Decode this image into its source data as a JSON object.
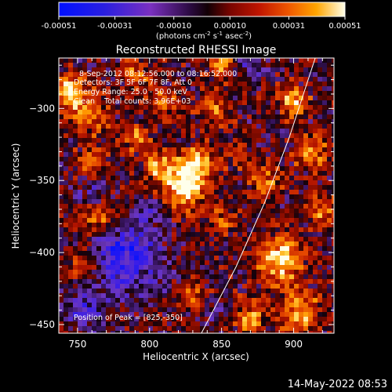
{
  "colorbar": {
    "tick_labels": [
      "-0.00051",
      "-0.00031",
      "-0.00010",
      "0.00010",
      "0.00031",
      "0.00051"
    ],
    "tick_values": [
      -0.00051,
      -0.00031,
      -0.0001,
      0.0001,
      0.00031,
      0.00051
    ],
    "range": [
      -0.00051,
      0.00051
    ],
    "units_prefix": "(photons cm",
    "units_exp1": "-2",
    "units_mid": " s",
    "units_exp2": "-1",
    "units_mid2": " asec",
    "units_exp3": "-2",
    "units_suffix": ")"
  },
  "title": "Reconstructed RHESSI Image",
  "annotations": {
    "time_range": "8-Sep-2012 08:12:56.000 to 08:16:52.000",
    "detectors": "Detectors: 3F 5F 6F 7F 8F, Att 0",
    "energy": "Energy Range: 25.0 - 50.0 keV",
    "counts": "Clean    Total counts: 3.96E+03",
    "peak": "Position of Peak = [825,-350]"
  },
  "timestamp": "14-May-2022 08:53",
  "chart_data": {
    "type": "heatmap",
    "xlabel": "Heliocentric X (arcsec)",
    "ylabel": "Heliocentric Y (arcsec)",
    "xlim": [
      737,
      928
    ],
    "ylim": [
      -456,
      -265
    ],
    "x_ticks": [
      750,
      800,
      850,
      900
    ],
    "y_ticks": [
      -300,
      -350,
      -400,
      -450
    ],
    "x_tick_labels": [
      "750",
      "800",
      "850",
      "900"
    ],
    "y_tick_labels": [
      "−300",
      "−350",
      "−400",
      "−450"
    ],
    "peak": [
      825,
      -350
    ],
    "colormap": [
      "#0000ff",
      "#6a2fb8",
      "#3a0f5a",
      "#0b0410",
      "#5a0a00",
      "#b01000",
      "#e04000",
      "#ff9000",
      "#ffe060",
      "#ffffff"
    ],
    "limb_curve": [
      [
        836,
        -456
      ],
      [
        860,
        -410
      ],
      [
        880,
        -365
      ],
      [
        897,
        -320
      ],
      [
        915,
        -265
      ]
    ]
  }
}
